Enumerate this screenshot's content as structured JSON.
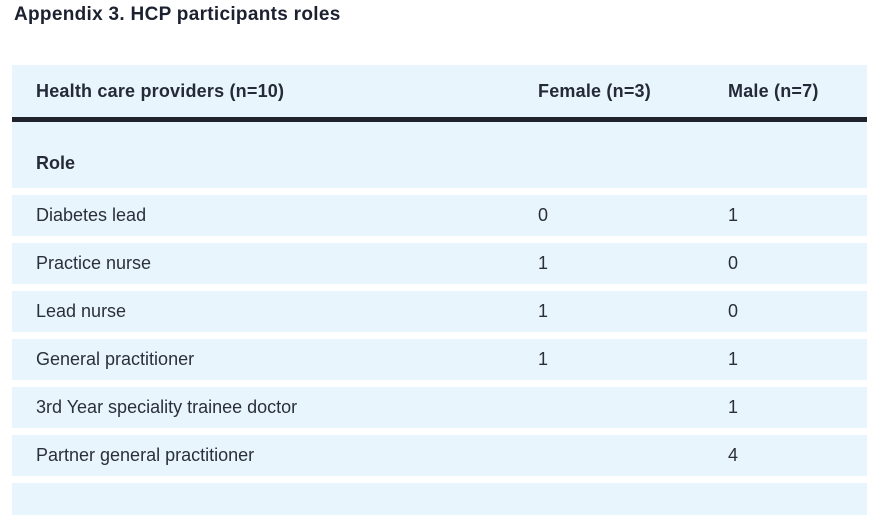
{
  "title": "Appendix 3. HCP participants roles",
  "table": {
    "columns": [
      "Health care providers (n=10)",
      "Female (n=3)",
      "Male (n=7)"
    ],
    "section_header": "Role",
    "rows": [
      {
        "label": "Diabetes lead",
        "female": "0",
        "male": "1"
      },
      {
        "label": "Practice nurse",
        "female": "1",
        "male": "0"
      },
      {
        "label": "Lead nurse",
        "female": "1",
        "male": "0"
      },
      {
        "label": "General practitioner",
        "female": "1",
        "male": "1"
      },
      {
        "label": "3rd Year speciality trainee doctor",
        "female": "",
        "male": "1"
      },
      {
        "label": "Partner general practitioner",
        "female": "",
        "male": "4"
      }
    ],
    "colors": {
      "row_background": "#e9f5fd",
      "header_rule": "#20232c",
      "text": "#2a2f3c",
      "title_text": "#1c2130"
    }
  }
}
